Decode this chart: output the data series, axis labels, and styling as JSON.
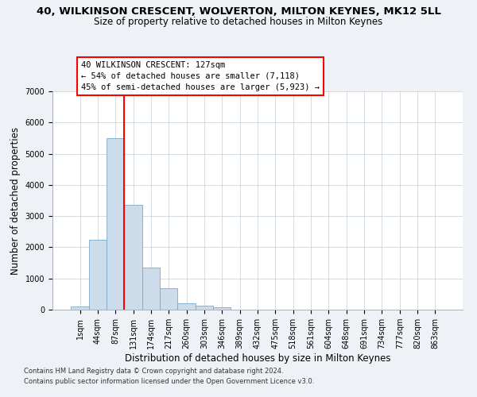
{
  "title": "40, WILKINSON CRESCENT, WOLVERTON, MILTON KEYNES, MK12 5LL",
  "subtitle": "Size of property relative to detached houses in Milton Keynes",
  "xlabel": "Distribution of detached houses by size in Milton Keynes",
  "ylabel": "Number of detached properties",
  "footnote1": "Contains HM Land Registry data © Crown copyright and database right 2024.",
  "footnote2": "Contains public sector information licensed under the Open Government Licence v3.0.",
  "categories": [
    "1sqm",
    "44sqm",
    "87sqm",
    "131sqm",
    "174sqm",
    "217sqm",
    "260sqm",
    "303sqm",
    "346sqm",
    "389sqm",
    "432sqm",
    "475sqm",
    "518sqm",
    "561sqm",
    "604sqm",
    "648sqm",
    "691sqm",
    "734sqm",
    "777sqm",
    "820sqm",
    "863sqm"
  ],
  "values": [
    100,
    2250,
    5500,
    3350,
    1350,
    700,
    200,
    130,
    80,
    0,
    0,
    0,
    0,
    0,
    0,
    0,
    0,
    0,
    0,
    0,
    0
  ],
  "bar_color": "#cddceb",
  "bar_edge_color": "#7aaac8",
  "vline_x": 2.5,
  "vline_color": "red",
  "annotation_text": "40 WILKINSON CRESCENT: 127sqm\n← 54% of detached houses are smaller (7,118)\n45% of semi-detached houses are larger (5,923) →",
  "annotation_box_facecolor": "white",
  "annotation_box_edgecolor": "red",
  "ylim": [
    0,
    7000
  ],
  "yticks": [
    0,
    1000,
    2000,
    3000,
    4000,
    5000,
    6000,
    7000
  ],
  "bg_color": "#eef2f7",
  "plot_bg_color": "white",
  "grid_color": "#c5cdd8",
  "title_fontsize": 9.5,
  "subtitle_fontsize": 8.5,
  "axis_label_fontsize": 8.5,
  "tick_fontsize": 7,
  "annotation_fontsize": 7.5,
  "footnote_fontsize": 6
}
